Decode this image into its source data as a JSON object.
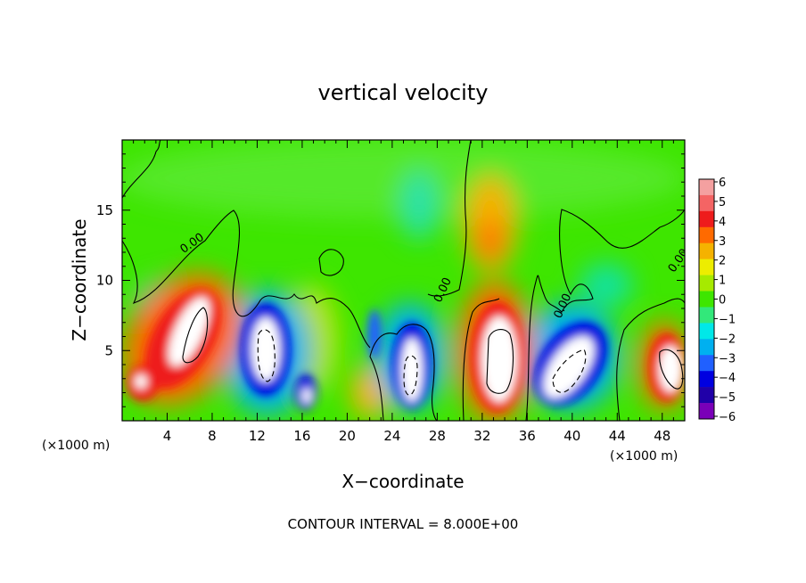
{
  "chart_data": {
    "type": "heatmap",
    "title": "vertical velocity",
    "xlabel": "X−coordinate",
    "ylabel": "Z−coordinate",
    "footer": "CONTOUR INTERVAL = 8.000E+00",
    "x_unit_label": "(×1000 m)",
    "z_unit_label": "(×1000 m)",
    "xlim": [
      0,
      50
    ],
    "zlim": [
      0,
      20
    ],
    "x_ticks": [
      "4",
      "8",
      "12",
      "16",
      "20",
      "24",
      "28",
      "32",
      "36",
      "40",
      "44",
      "48"
    ],
    "z_ticks": [
      "5",
      "10",
      "15"
    ],
    "contour_labels": [
      "0.00",
      "0.00",
      "0.00",
      "0.00"
    ],
    "colorbar": {
      "min": -6,
      "max": 6,
      "tick_labels": [
        "6",
        "5",
        "4",
        "3",
        "2",
        "1",
        "0",
        "−1",
        "−2",
        "−3",
        "−4",
        "−5",
        "−6"
      ],
      "colors": [
        "#f4a0a0",
        "#f46464",
        "#ee1c1c",
        "#ff6a00",
        "#f5b200",
        "#eded00",
        "#a6ea00",
        "#3ee600",
        "#32e87a",
        "#00e8e8",
        "#00b0f0",
        "#2060ff",
        "#0000e0",
        "#2000a8",
        "#7a00b8"
      ]
    },
    "field": {
      "background": 0.2,
      "features": [
        {
          "x": 6.5,
          "z": 7.0,
          "w": 0.8
        },
        {
          "x": 2.0,
          "z": 3.0,
          "w": 0.7
        },
        {
          "x": 4.5,
          "z": 3.5,
          "w": 0.7
        },
        {
          "x": 13.0,
          "z": 5.0,
          "w": -0.8
        },
        {
          "x": 15.5,
          "z": 2.5,
          "w": -0.6
        },
        {
          "x": 25.5,
          "z": 4.5,
          "w": -0.8
        },
        {
          "x": 33.0,
          "z": 5.0,
          "w": 0.9
        },
        {
          "x": 40.0,
          "z": 4.5,
          "w": -0.8
        },
        {
          "x": 48.0,
          "z": 4.5,
          "w": 0.8
        },
        {
          "x": 33.0,
          "z": 13.0,
          "w": 0.4
        },
        {
          "x": 20.0,
          "z": 7.0,
          "w": -0.3
        },
        {
          "x": 27.0,
          "z": 16.0,
          "w": -0.15
        },
        {
          "x": 22.0,
          "z": 2.0,
          "w": 0.3
        }
      ]
    }
  }
}
